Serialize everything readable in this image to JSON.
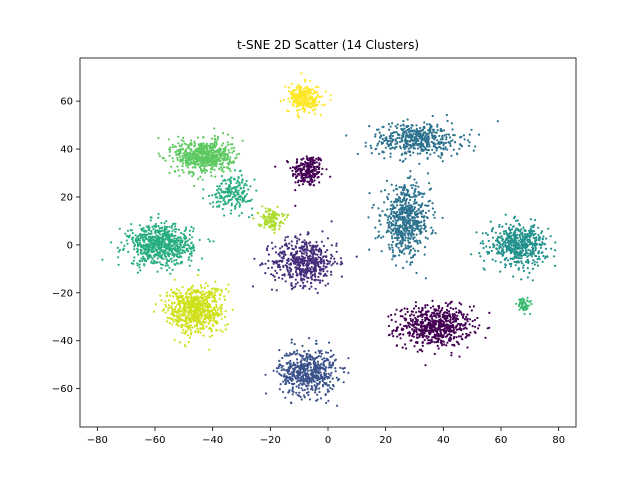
{
  "chart_data": {
    "type": "scatter",
    "title": "t-SNE 2D Scatter (14 Clusters)",
    "xlabel": "",
    "ylabel": "",
    "xlim": [
      -86,
      86
    ],
    "ylim": [
      -76,
      78
    ],
    "xticks": [
      -80,
      -60,
      -40,
      -20,
      0,
      20,
      40,
      60,
      80
    ],
    "yticks": [
      -60,
      -40,
      -20,
      0,
      20,
      40,
      60
    ],
    "xtick_labels": [
      "−80",
      "−60",
      "−40",
      "−20",
      "0",
      "20",
      "40",
      "60",
      "80"
    ],
    "ytick_labels": [
      "−60",
      "−40",
      "−20",
      "0",
      "20",
      "40",
      "60"
    ],
    "grid": false,
    "legend": "none",
    "colormap": "viridis",
    "clusters": [
      {
        "id": 0,
        "color": "#440154",
        "center": [
          -7,
          31
        ],
        "spread": [
          4,
          5
        ],
        "n": 220
      },
      {
        "id": 1,
        "color": "#440154",
        "center": [
          37,
          -34
        ],
        "spread": [
          9,
          6
        ],
        "n": 650
      },
      {
        "id": 2,
        "color": "#472d7b",
        "center": [
          -8,
          -7
        ],
        "spread": [
          8,
          7
        ],
        "n": 520
      },
      {
        "id": 3,
        "color": "#3b528b",
        "center": [
          -7,
          -53
        ],
        "spread": [
          7,
          7
        ],
        "n": 560
      },
      {
        "id": 4,
        "color": "#2c728e",
        "center": [
          31,
          44
        ],
        "spread": [
          11,
          5
        ],
        "n": 480
      },
      {
        "id": 5,
        "color": "#2c728e",
        "center": [
          27,
          10
        ],
        "spread": [
          6,
          10
        ],
        "n": 620
      },
      {
        "id": 6,
        "color": "#21918c",
        "center": [
          66,
          0
        ],
        "spread": [
          7,
          6
        ],
        "n": 520
      },
      {
        "id": 7,
        "color": "#28ae80",
        "center": [
          -58,
          0
        ],
        "spread": [
          8,
          6
        ],
        "n": 700
      },
      {
        "id": 8,
        "color": "#28ae80",
        "center": [
          -33,
          22
        ],
        "spread": [
          5,
          5
        ],
        "n": 200
      },
      {
        "id": 9,
        "color": "#3fbc73",
        "center": [
          68,
          -25
        ],
        "spread": [
          1.5,
          2
        ],
        "n": 60
      },
      {
        "id": 10,
        "color": "#5ec962",
        "center": [
          -43,
          37
        ],
        "spread": [
          7,
          5
        ],
        "n": 650
      },
      {
        "id": 11,
        "color": "#addc30",
        "center": [
          -20,
          11
        ],
        "spread": [
          3,
          3
        ],
        "n": 120
      },
      {
        "id": 12,
        "color": "#d0e11c",
        "center": [
          -46,
          -27
        ],
        "spread": [
          7,
          7
        ],
        "n": 700
      },
      {
        "id": 13,
        "color": "#fde725",
        "center": [
          -8,
          61
        ],
        "spread": [
          4,
          4
        ],
        "n": 280
      }
    ]
  }
}
